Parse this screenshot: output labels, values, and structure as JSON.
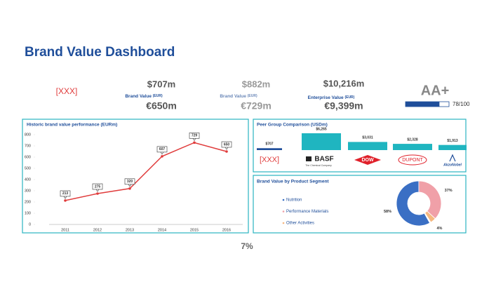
{
  "header": {
    "title": "Brand Value Dashboard"
  },
  "kpis": {
    "placeholder": "[XXX]",
    "brand_value": {
      "usd": "$707m",
      "label": "Brand Value",
      "unit": "(EUR)",
      "eur": "€650m"
    },
    "brand_value_prior": {
      "usd": "$882m",
      "label": "Brand Value",
      "unit": "(EUR)",
      "eur": "€729m"
    },
    "enterprise_value": {
      "usd": "$10,216m",
      "label": "Enterprise Value",
      "unit": "(EUR)",
      "eur": "€9,399m"
    },
    "rating": {
      "grade": "AA+",
      "score": 78,
      "max": 100,
      "label": "78/100",
      "color": "#1f4e9a"
    }
  },
  "chart_data": [
    {
      "type": "line",
      "title": "Historic brand value performance (EURm)",
      "categories": [
        "2011",
        "2012",
        "2013",
        "2014",
        "2015",
        "2016"
      ],
      "values": [
        213,
        275,
        320,
        607,
        729,
        650
      ],
      "color": "#e03c3c",
      "ylim": [
        0,
        800
      ],
      "yticks": [
        0,
        100,
        200,
        300,
        400,
        500,
        600,
        700,
        800
      ]
    },
    {
      "type": "bar",
      "title": "Peer Group Comparison (USDm)",
      "categories": [
        "[XXX]",
        "BASF",
        "DOW",
        "DUPONT",
        "AkzoNobel"
      ],
      "category_captions": [
        null,
        "The Chemical Company",
        null,
        null,
        null
      ],
      "values": [
        707,
        6265,
        3031,
        2328,
        1913
      ],
      "value_labels": [
        "$707",
        "$6,265",
        "$3,031",
        "$2,328",
        "$1,913"
      ],
      "colors": [
        "#1f4e9a",
        "#1fb5c0",
        "#1fb5c0",
        "#1fb5c0",
        "#1fb5c0"
      ]
    },
    {
      "type": "pie",
      "title": "Brand Value by Product Segment",
      "categories": [
        "Nutrition",
        "Performance Materials",
        "Other Activities"
      ],
      "values": [
        58,
        37,
        4
      ],
      "value_labels": [
        "58%",
        "37%",
        "4%"
      ],
      "colors": [
        "#3a6fc4",
        "#f0a0a8",
        "#f5b880"
      ],
      "legend": "left"
    }
  ],
  "footer": "7%"
}
